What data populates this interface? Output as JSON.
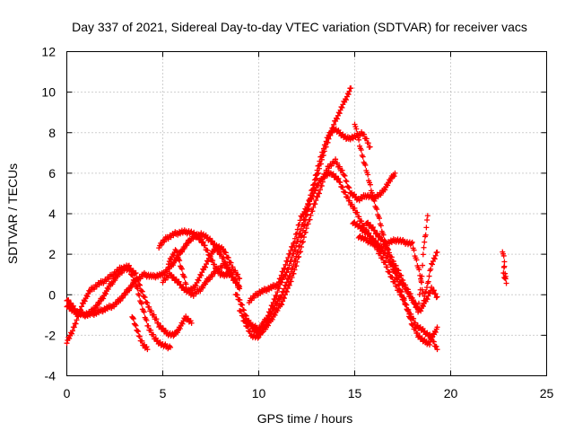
{
  "chart_data": {
    "type": "scatter",
    "title": "Day 337 of 2021, Sidereal Day-to-day VTEC variation (SDTVAR) for receiver vacs",
    "xlabel": "GPS time / hours",
    "ylabel": "SDTVAR / TECUs",
    "xlim": [
      0,
      25
    ],
    "ylim": [
      -4,
      12
    ],
    "xticks": [
      0,
      5,
      10,
      15,
      20,
      25
    ],
    "yticks": [
      -4,
      -2,
      0,
      2,
      4,
      6,
      8,
      10,
      12
    ],
    "grid": true,
    "marker": "plus",
    "color": "#ff0000",
    "series": [
      {
        "values": [
          [
            0.0,
            -0.2
          ],
          [
            0.3,
            -0.6
          ],
          [
            0.6,
            -0.9
          ],
          [
            1.0,
            -1.0
          ],
          [
            1.5,
            -0.9
          ],
          [
            2.0,
            -0.7
          ],
          [
            2.5,
            -0.5
          ],
          [
            3.0,
            0.0
          ],
          [
            3.5,
            0.6
          ],
          [
            4.0,
            1.0
          ],
          [
            4.5,
            0.9
          ],
          [
            5.0,
            1.0
          ],
          [
            5.5,
            1.5
          ],
          [
            6.0,
            2.2
          ],
          [
            6.5,
            2.8
          ],
          [
            7.0,
            3.0
          ],
          [
            7.5,
            2.7
          ],
          [
            8.0,
            2.0
          ],
          [
            8.5,
            1.2
          ]
        ]
      },
      {
        "values": [
          [
            0.0,
            -0.5
          ],
          [
            0.3,
            -0.8
          ],
          [
            0.8,
            -1.0
          ],
          [
            1.2,
            -0.9
          ],
          [
            1.6,
            -0.5
          ],
          [
            1.9,
            -0.1
          ],
          [
            2.2,
            0.4
          ],
          [
            2.6,
            0.9
          ],
          [
            3.0,
            1.3
          ],
          [
            3.3,
            1.2
          ],
          [
            3.6,
            0.5
          ],
          [
            3.9,
            -0.5
          ],
          [
            4.2,
            -1.5
          ],
          [
            4.6,
            -2.2
          ],
          [
            5.0,
            -2.5
          ],
          [
            5.4,
            -2.6
          ]
        ]
      },
      {
        "values": [
          [
            0.0,
            -2.3
          ],
          [
            0.3,
            -1.8
          ],
          [
            0.6,
            -1.0
          ],
          [
            0.9,
            -0.3
          ],
          [
            1.2,
            0.2
          ],
          [
            1.6,
            0.5
          ],
          [
            2.0,
            0.7
          ],
          [
            2.4,
            1.0
          ],
          [
            2.8,
            1.3
          ],
          [
            3.2,
            1.4
          ],
          [
            3.6,
            1.0
          ],
          [
            3.9,
            0.2
          ],
          [
            4.2,
            -0.5
          ],
          [
            4.5,
            -1.0
          ],
          [
            4.8,
            -1.5
          ],
          [
            5.2,
            -1.9
          ],
          [
            5.6,
            -2.0
          ],
          [
            5.9,
            -1.6
          ],
          [
            6.2,
            -1.1
          ],
          [
            6.5,
            -1.4
          ]
        ]
      },
      {
        "values": [
          [
            3.4,
            -1.0
          ],
          [
            3.6,
            -1.6
          ],
          [
            3.8,
            -2.1
          ],
          [
            4.0,
            -2.5
          ],
          [
            4.2,
            -2.7
          ]
        ]
      },
      {
        "values": [
          [
            4.8,
            2.4
          ],
          [
            5.2,
            2.8
          ],
          [
            5.6,
            3.0
          ],
          [
            6.0,
            3.1
          ],
          [
            6.4,
            3.1
          ],
          [
            6.8,
            2.9
          ],
          [
            7.2,
            2.4
          ],
          [
            7.6,
            1.6
          ],
          [
            8.0,
            1.0
          ],
          [
            8.5,
            1.0
          ],
          [
            9.0,
            0.4
          ]
        ]
      },
      {
        "values": [
          [
            5.0,
            0.7
          ],
          [
            5.4,
            1.0
          ],
          [
            5.8,
            0.6
          ],
          [
            6.2,
            0.2
          ],
          [
            6.6,
            0.0
          ],
          [
            7.0,
            0.3
          ],
          [
            7.4,
            0.8
          ],
          [
            7.8,
            1.2
          ],
          [
            8.2,
            1.5
          ],
          [
            8.6,
            1.0
          ],
          [
            9.0,
            0.3
          ]
        ]
      },
      {
        "values": [
          [
            5.3,
            1.6
          ],
          [
            5.7,
            2.2
          ],
          [
            6.0,
            1.2
          ],
          [
            6.3,
            0.2
          ],
          [
            6.6,
            0.3
          ],
          [
            7.0,
            1.0
          ],
          [
            7.4,
            1.8
          ],
          [
            7.8,
            2.4
          ],
          [
            8.2,
            2.2
          ],
          [
            8.6,
            1.4
          ],
          [
            9.0,
            0.8
          ]
        ]
      },
      {
        "values": [
          [
            8.8,
            0.1
          ],
          [
            9.1,
            -0.5
          ],
          [
            9.4,
            -1.2
          ],
          [
            9.7,
            -1.7
          ],
          [
            10.0,
            -1.9
          ],
          [
            10.4,
            -1.6
          ],
          [
            10.8,
            -1.0
          ],
          [
            11.2,
            -0.4
          ],
          [
            11.6,
            0.5
          ],
          [
            12.0,
            1.6
          ],
          [
            12.4,
            3.0
          ],
          [
            12.8,
            4.2
          ],
          [
            13.2,
            5.2
          ],
          [
            13.6,
            6.3
          ],
          [
            14.0,
            6.6
          ],
          [
            14.4,
            6.0
          ],
          [
            14.8,
            5.0
          ],
          [
            15.2,
            4.7
          ],
          [
            15.6,
            4.9
          ],
          [
            16.0,
            4.8
          ],
          [
            16.4,
            5.0
          ],
          [
            16.8,
            5.6
          ],
          [
            17.1,
            6.0
          ]
        ]
      },
      {
        "values": [
          [
            9.0,
            -0.7
          ],
          [
            9.3,
            -1.3
          ],
          [
            9.6,
            -1.5
          ],
          [
            10.0,
            -1.7
          ],
          [
            10.4,
            -1.2
          ],
          [
            10.8,
            -0.3
          ],
          [
            11.1,
            0.5
          ],
          [
            11.5,
            1.2
          ],
          [
            11.9,
            2.3
          ],
          [
            12.3,
            3.5
          ],
          [
            12.7,
            4.9
          ],
          [
            13.0,
            6.0
          ],
          [
            13.3,
            7.0
          ],
          [
            13.6,
            7.8
          ],
          [
            13.9,
            8.2
          ],
          [
            14.2,
            8.0
          ],
          [
            14.6,
            7.7
          ],
          [
            15.0,
            7.8
          ],
          [
            15.4,
            8.0
          ],
          [
            15.8,
            7.3
          ]
        ]
      },
      {
        "values": [
          [
            9.2,
            -1.2
          ],
          [
            9.6,
            -2.0
          ],
          [
            10.0,
            -2.1
          ],
          [
            10.4,
            -1.4
          ],
          [
            10.8,
            -0.6
          ],
          [
            11.2,
            0.0
          ],
          [
            11.6,
            0.9
          ],
          [
            12.0,
            2.0
          ],
          [
            12.4,
            3.5
          ],
          [
            12.8,
            5.0
          ],
          [
            13.2,
            6.4
          ],
          [
            13.6,
            7.6
          ],
          [
            14.0,
            8.6
          ],
          [
            14.3,
            9.2
          ],
          [
            14.6,
            9.8
          ],
          [
            14.8,
            10.2
          ]
        ]
      },
      {
        "values": [
          [
            9.5,
            -0.3
          ],
          [
            10.0,
            0.1
          ],
          [
            10.5,
            0.3
          ],
          [
            11.0,
            0.5
          ],
          [
            11.4,
            1.5
          ],
          [
            11.8,
            2.5
          ],
          [
            12.2,
            3.8
          ],
          [
            12.6,
            4.5
          ],
          [
            13.0,
            5.3
          ],
          [
            13.4,
            5.9
          ],
          [
            13.8,
            6.0
          ],
          [
            14.2,
            5.6
          ],
          [
            14.6,
            4.8
          ],
          [
            15.0,
            4.2
          ],
          [
            15.4,
            3.5
          ],
          [
            15.8,
            2.8
          ],
          [
            16.2,
            2.2
          ],
          [
            16.6,
            1.5
          ],
          [
            17.0,
            0.7
          ],
          [
            17.4,
            0.0
          ],
          [
            17.8,
            -0.8
          ],
          [
            18.2,
            -1.5
          ],
          [
            18.6,
            -1.8
          ],
          [
            19.0,
            -2.1
          ],
          [
            19.3,
            -2.7
          ]
        ]
      },
      {
        "values": [
          [
            15.0,
            8.5
          ],
          [
            15.3,
            7.2
          ],
          [
            15.6,
            6.2
          ],
          [
            15.9,
            5.0
          ],
          [
            16.2,
            4.0
          ],
          [
            16.5,
            2.9
          ],
          [
            16.8,
            2.0
          ],
          [
            17.1,
            1.0
          ],
          [
            17.4,
            0.2
          ],
          [
            17.7,
            -0.6
          ],
          [
            18.0,
            -1.5
          ],
          [
            18.3,
            -2.0
          ],
          [
            18.6,
            -2.3
          ],
          [
            18.9,
            -2.4
          ],
          [
            19.1,
            -2.0
          ],
          [
            19.3,
            -1.6
          ]
        ]
      },
      {
        "values": [
          [
            14.9,
            3.6
          ],
          [
            15.3,
            3.3
          ],
          [
            15.7,
            3.0
          ],
          [
            16.1,
            2.6
          ],
          [
            16.5,
            2.1
          ],
          [
            16.9,
            1.5
          ],
          [
            17.3,
            0.8
          ],
          [
            17.7,
            0.2
          ],
          [
            18.1,
            -0.4
          ],
          [
            18.4,
            -0.8
          ],
          [
            18.7,
            -0.3
          ],
          [
            19.0,
            0.3
          ],
          [
            19.3,
            -0.1
          ]
        ]
      },
      {
        "values": [
          [
            15.2,
            2.9
          ],
          [
            15.6,
            2.7
          ],
          [
            16.0,
            2.5
          ],
          [
            16.4,
            2.3
          ],
          [
            16.8,
            2.6
          ],
          [
            17.2,
            2.7
          ],
          [
            17.6,
            2.6
          ],
          [
            18.0,
            2.5
          ],
          [
            18.4,
            1.0
          ],
          [
            18.6,
            -0.2
          ],
          [
            18.8,
            0.5
          ],
          [
            19.0,
            1.5
          ],
          [
            19.3,
            2.1
          ]
        ]
      },
      {
        "values": [
          [
            15.6,
            3.6
          ],
          [
            16.0,
            3.2
          ],
          [
            16.4,
            2.7
          ],
          [
            16.8,
            2.0
          ],
          [
            17.2,
            1.3
          ],
          [
            17.6,
            0.5
          ],
          [
            18.0,
            -0.2
          ],
          [
            18.3,
            -0.8
          ],
          [
            18.5,
            1.0
          ],
          [
            18.6,
            2.4
          ],
          [
            18.7,
            3.0
          ],
          [
            18.8,
            3.9
          ]
        ]
      },
      {
        "values": [
          [
            22.7,
            2.2
          ],
          [
            22.8,
            1.7
          ],
          [
            22.75,
            1.0
          ],
          [
            22.9,
            0.6
          ],
          [
            22.8,
            1.4
          ]
        ]
      }
    ]
  }
}
